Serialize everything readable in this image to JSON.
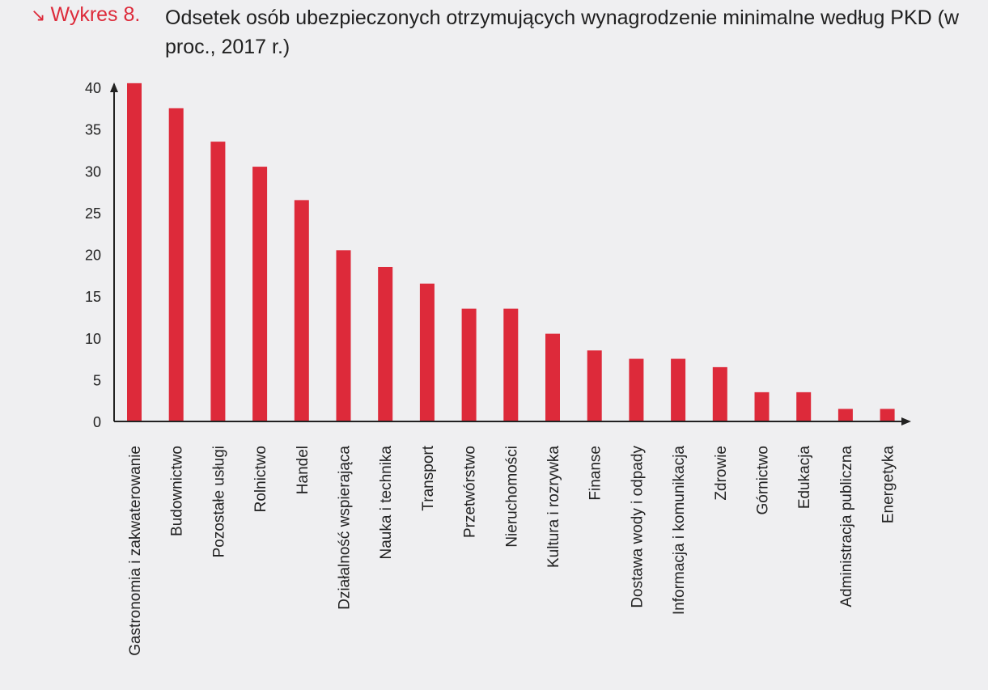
{
  "header": {
    "figure_label": "Wykres 8.",
    "arrow_icon": "arrow-down-right-icon",
    "title": "Odsetek osób ubezpieczonych otrzymujących wynagrodzenie minimalne według PKD (w proc., 2017 r.)"
  },
  "colors": {
    "bar": "#dd2a3a",
    "accent": "#dd2a3a",
    "axis": "#222222",
    "background": "#efeff1"
  },
  "chart_data": {
    "type": "bar",
    "title": "Odsetek osób ubezpieczonych otrzymujących wynagrodzenie minimalne według PKD (w proc., 2017 r.)",
    "xlabel": "",
    "ylabel": "",
    "ylim": [
      0,
      40
    ],
    "yticks": [
      0,
      5,
      10,
      15,
      20,
      25,
      30,
      35,
      40
    ],
    "grid": false,
    "categories": [
      "Gastronomia i zakwaterowanie",
      "Budownictwo",
      "Pozostałe usługi",
      "Rolnictwo",
      "Handel",
      "Działalność wspierająca",
      "Nauka i technika",
      "Transport",
      "Przetwórstwo",
      "Nieruchomości",
      "Kultura i rozrywka",
      "Finanse",
      "Dostawa wody i odpady",
      "Informacja i komunikacja",
      "Zdrowie",
      "Górnictwo",
      "Edukacja",
      "Administracja publiczna",
      "Energetyka"
    ],
    "values": [
      40.5,
      37.5,
      33.5,
      30.5,
      26.5,
      20.5,
      18.5,
      16.5,
      13.5,
      13.5,
      10.5,
      8.5,
      7.5,
      7.5,
      6.5,
      3.5,
      3.5,
      1.5,
      1.5
    ]
  }
}
